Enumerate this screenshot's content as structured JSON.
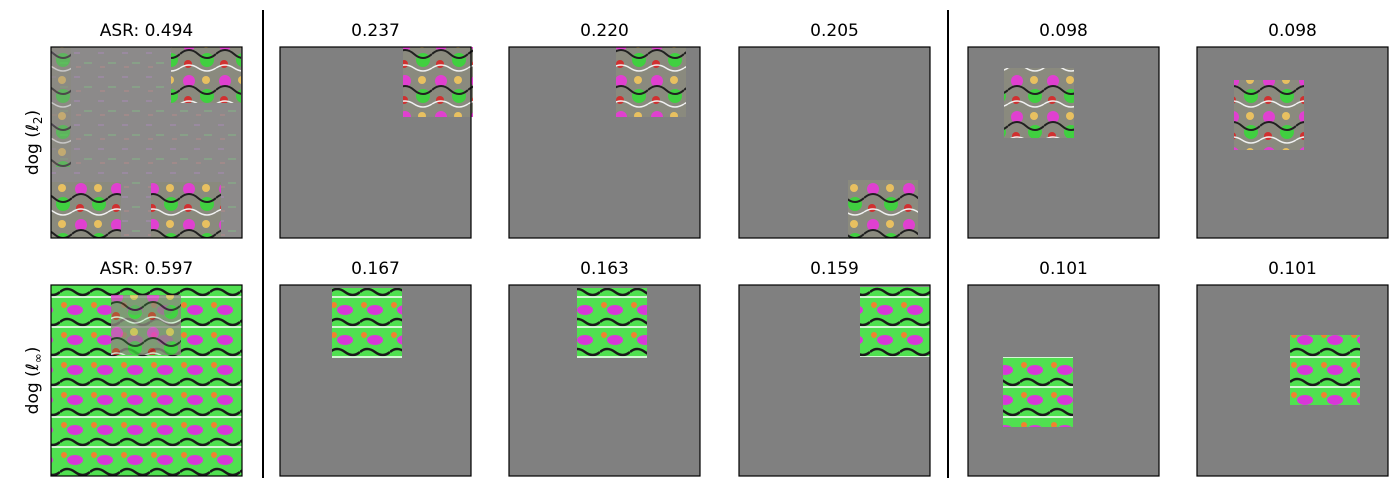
{
  "figure": {
    "rows": [
      {
        "label": {
          "prefix": "dog (ℓ",
          "sub": "2",
          "suffix": ")"
        },
        "titles": [
          "ASR: 0.494",
          "0.237",
          "0.220",
          "0.205",
          "0.098",
          "0.098"
        ]
      },
      {
        "label": {
          "prefix": "dog (ℓ",
          "sub": "∞",
          "suffix": ")"
        },
        "titles": [
          "ASR: 0.597",
          "0.167",
          "0.163",
          "0.159",
          "0.101",
          "0.101"
        ]
      }
    ]
  }
}
